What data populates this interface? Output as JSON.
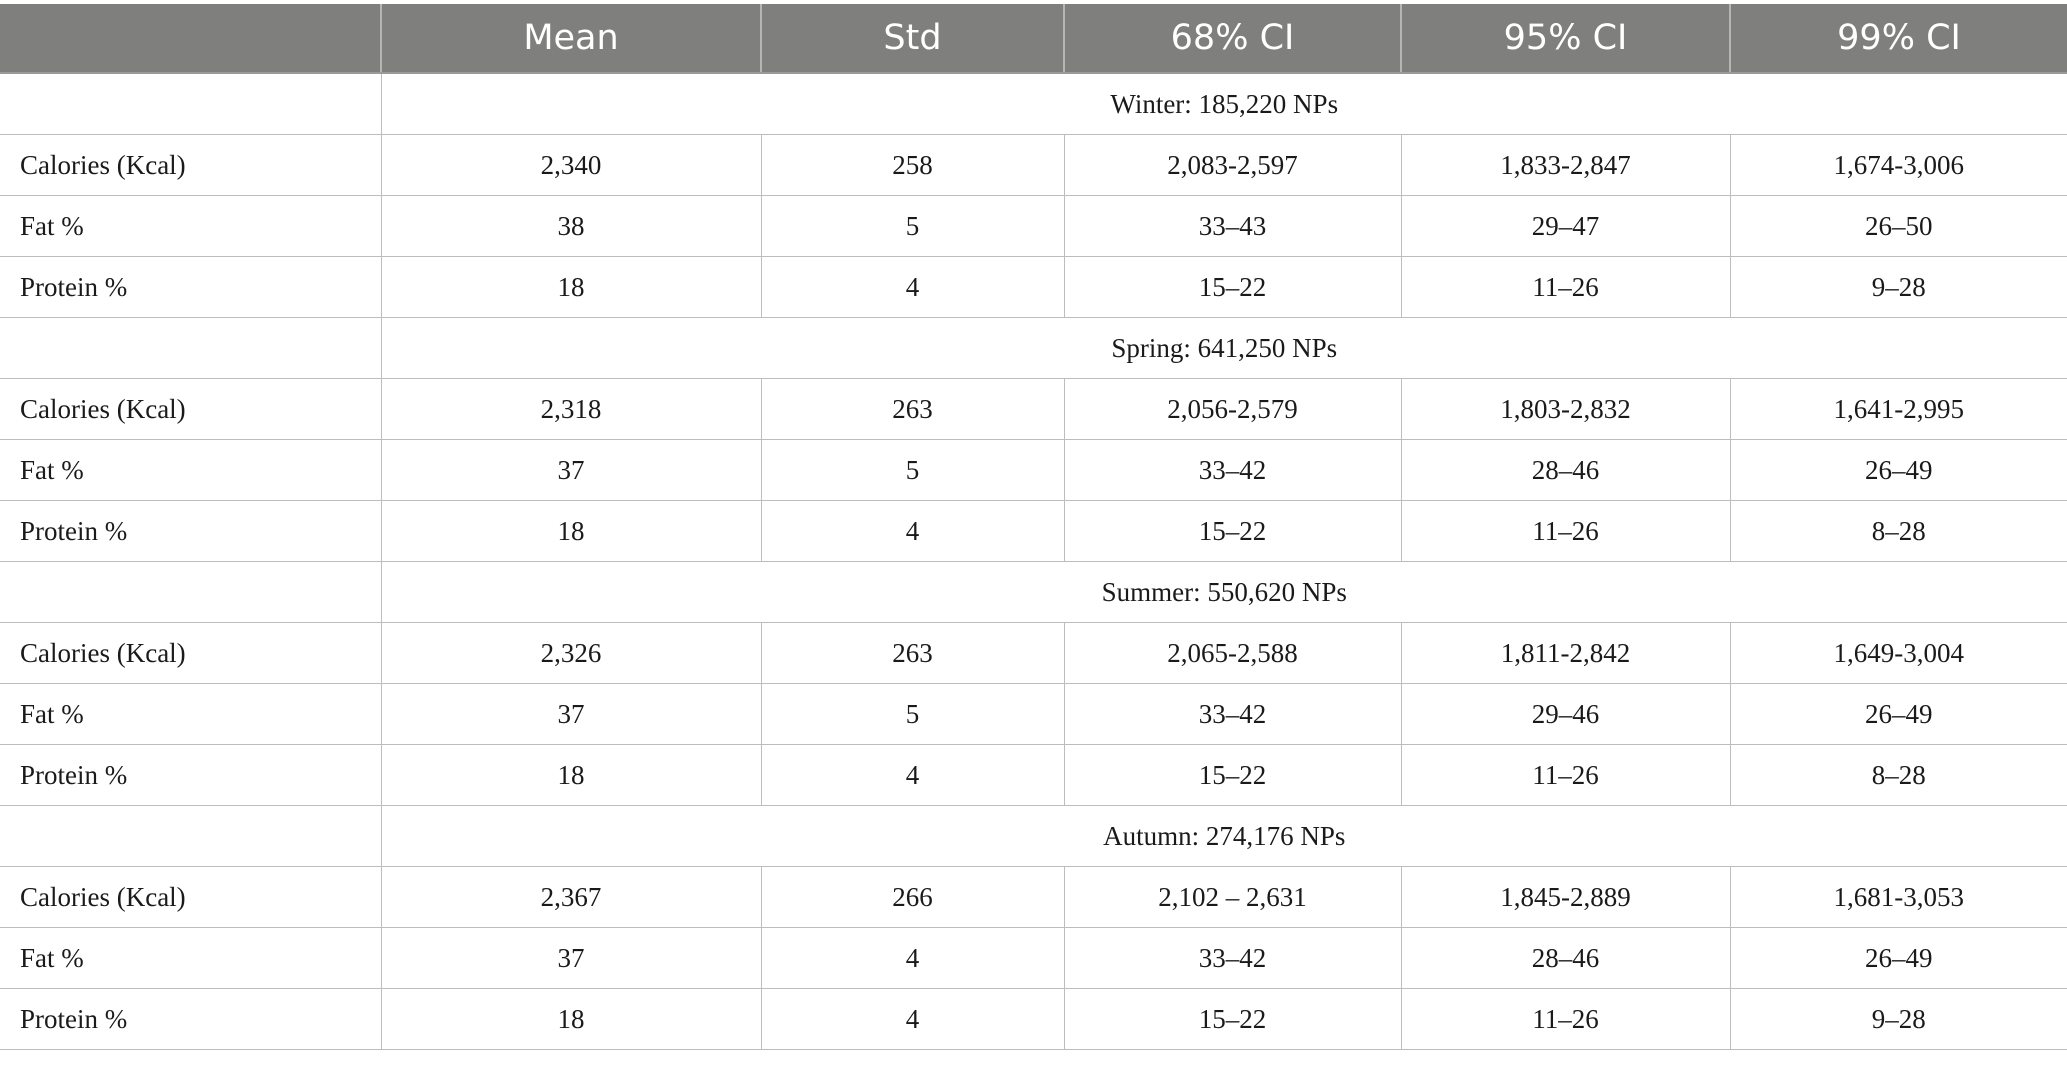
{
  "header": {
    "columns": [
      "",
      "Mean",
      "Std",
      "68% CI",
      "95% CI",
      "99% CI"
    ]
  },
  "sections": [
    {
      "title": "Winter: 185,220 NPs",
      "rows": [
        [
          "Calories (Kcal)",
          "2,340",
          "258",
          "2,083-2,597",
          "1,833-2,847",
          "1,674-3,006"
        ],
        [
          "Fat %",
          "38",
          "5",
          "33–43",
          "29–47",
          "26–50"
        ],
        [
          "Protein %",
          "18",
          "4",
          "15–22",
          "11–26",
          "9–28"
        ]
      ]
    },
    {
      "title": "Spring: 641,250 NPs",
      "rows": [
        [
          "Calories (Kcal)",
          "2,318",
          "263",
          "2,056-2,579",
          "1,803-2,832",
          "1,641-2,995"
        ],
        [
          "Fat %",
          "37",
          "5",
          "33–42",
          "28–46",
          "26–49"
        ],
        [
          "Protein %",
          "18",
          "4",
          "15–22",
          "11–26",
          "8–28"
        ]
      ]
    },
    {
      "title": "Summer: 550,620 NPs",
      "rows": [
        [
          "Calories (Kcal)",
          "2,326",
          "263",
          "2,065-2,588",
          "1,811-2,842",
          "1,649-3,004"
        ],
        [
          "Fat %",
          "37",
          "5",
          "33–42",
          "29–46",
          "26–49"
        ],
        [
          "Protein %",
          "18",
          "4",
          "15–22",
          "11–26",
          "8–28"
        ]
      ]
    },
    {
      "title": "Autumn: 274,176 NPs",
      "rows": [
        [
          "Calories (Kcal)",
          "2,367",
          "266",
          "2,102 – 2,631",
          "1,845-2,889",
          "1,681-3,053"
        ],
        [
          "Fat %",
          "37",
          "4",
          "33–42",
          "28–46",
          "26–49"
        ],
        [
          "Protein %",
          "18",
          "4",
          "15–22",
          "11–26",
          "9–28"
        ]
      ]
    }
  ],
  "colors": {
    "header_bg": "#7f807e",
    "header_text": "#ffffff",
    "grid": "#bdbdbd",
    "body_text": "#1a1a1a"
  }
}
